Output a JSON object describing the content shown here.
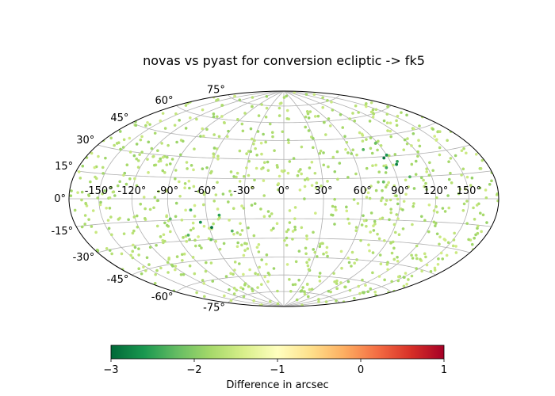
{
  "chart_data": {
    "type": "scatter",
    "projection": "aitoff-hammer",
    "title": "novas vs pyast for conversion ecliptic -> fk5",
    "grid": true,
    "longitude_ticks": [
      "-150°",
      "-120°",
      "-90°",
      "-60°",
      "-30°",
      "0°",
      "30°",
      "60°",
      "90°",
      "120°",
      "150°"
    ],
    "latitude_ticks": [
      "-75°",
      "-60°",
      "-45°",
      "-30°",
      "-15°",
      "0°",
      "15°",
      "30°",
      "45°",
      "60°",
      "75°"
    ],
    "colormap": "RdYlGn_r",
    "color_range": [
      -3,
      1
    ],
    "colorbar": {
      "label": "Difference in arcsec",
      "ticks": [
        "−3",
        "−2",
        "−1",
        "0",
        "1"
      ],
      "placement": "bottom"
    },
    "highlighted_points": [
      {
        "lon": 86,
        "lat": 29,
        "value": -2.9
      },
      {
        "lon": 94,
        "lat": 24,
        "value": -2.8
      },
      {
        "lon": 90,
        "lat": 31,
        "value": -2.6
      },
      {
        "lon": 96,
        "lat": 26,
        "value": -2.5
      },
      {
        "lon": 84,
        "lat": 22,
        "value": -2.4
      },
      {
        "lon": 72,
        "lat": 36,
        "value": -2.3
      },
      {
        "lon": 101,
        "lat": 15,
        "value": -2.3
      },
      {
        "lon": 78,
        "lat": 12,
        "value": -2.2
      },
      {
        "lon": 88,
        "lat": 40,
        "value": -2.2
      },
      {
        "lon": -58,
        "lat": -21,
        "value": -2.9
      },
      {
        "lon": -66,
        "lat": -17,
        "value": -2.7
      },
      {
        "lon": -50,
        "lat": -12,
        "value": -2.5
      },
      {
        "lon": -72,
        "lat": -8,
        "value": -2.4
      },
      {
        "lon": -42,
        "lat": -24,
        "value": -2.3
      },
      {
        "lon": -80,
        "lat": -26,
        "value": -2.3
      },
      {
        "lon": -62,
        "lat": -30,
        "value": -2.2
      },
      {
        "lon": -90,
        "lat": -14,
        "value": -2.2
      }
    ]
  }
}
